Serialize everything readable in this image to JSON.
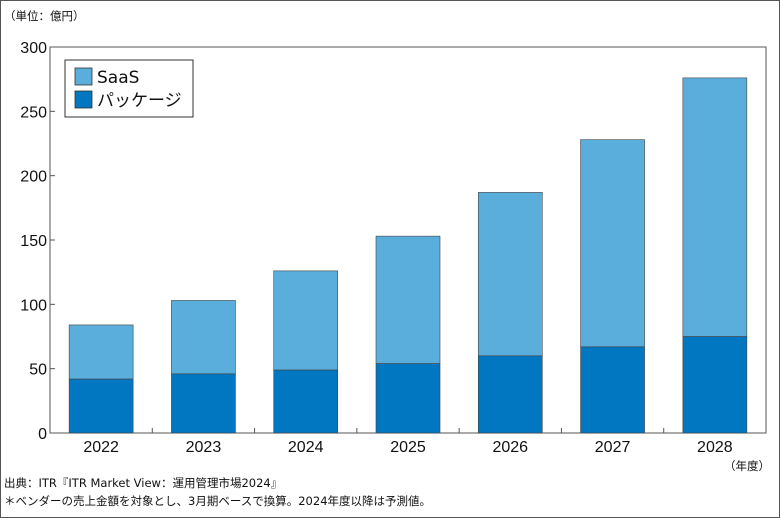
{
  "chart_data": {
    "type": "bar",
    "stacked": true,
    "unit_label": "（単位：億円）",
    "x_unit_label": "（年度）",
    "categories": [
      "2022",
      "2023",
      "2024",
      "2025",
      "2026",
      "2027",
      "2028"
    ],
    "series": [
      {
        "name": "パッケージ",
        "color": "#0077c0",
        "values": [
          42,
          46,
          49,
          54,
          60,
          67,
          75
        ]
      },
      {
        "name": "SaaS",
        "color": "#5aaedc",
        "values": [
          42,
          57,
          77,
          99,
          127,
          161,
          201
        ]
      }
    ],
    "y_ticks": [
      "0",
      "50",
      "100",
      "150",
      "200",
      "250",
      "300"
    ],
    "ylim": [
      0,
      300
    ],
    "grid": false,
    "legend_position": "top-left",
    "legend": [
      "SaaS",
      "パッケージ"
    ]
  },
  "notes": {
    "source": "出典：ITR『ITR Market View：運用管理市場2024』",
    "footnote": "＊ベンダーの売上金額を対象とし、3月期ベースで換算。2024年度以降は予測値。"
  }
}
